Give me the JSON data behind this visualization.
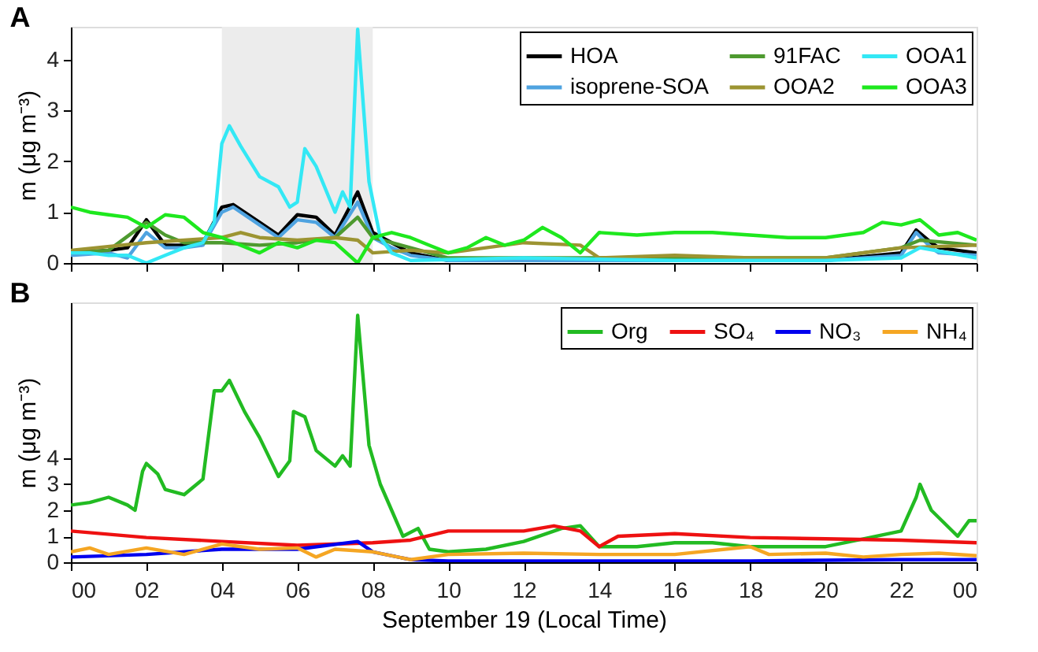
{
  "chart_data": [
    {
      "type": "line",
      "title": "A",
      "ylabel": "m (μg m⁻³)",
      "xlim": [
        0,
        24
      ],
      "ylim": [
        0,
        4.65
      ],
      "xticks": [
        {
          "value": 0,
          "label": null
        },
        {
          "value": 2,
          "label": null
        },
        {
          "value": 4,
          "label": null
        },
        {
          "value": 6,
          "label": null
        },
        {
          "value": 8,
          "label": null
        },
        {
          "value": 10,
          "label": null
        },
        {
          "value": 12,
          "label": null
        },
        {
          "value": 14,
          "label": null
        },
        {
          "value": 16,
          "label": null
        },
        {
          "value": 18,
          "label": null
        },
        {
          "value": 20,
          "label": null
        },
        {
          "value": 22,
          "label": null
        },
        {
          "value": 24,
          "label": null
        }
      ],
      "yticks": [
        0,
        1,
        2,
        3,
        4
      ],
      "tick_labels": "y",
      "grid": false,
      "legend": "top right",
      "line_style": "solid",
      "bands": [
        {
          "axis": "x",
          "from": 4,
          "to": 8,
          "color": "#ececec"
        }
      ],
      "series": [
        {
          "name": "HOA",
          "color": "#000000",
          "x": [
            0,
            1,
            1.5,
            2,
            2.5,
            3,
            3.5,
            4,
            4.3,
            5,
            5.5,
            6,
            6.5,
            7,
            7.6,
            8,
            8.5,
            9,
            10,
            12,
            14,
            16,
            18,
            20,
            22,
            22.4,
            22.8,
            23,
            24
          ],
          "values": [
            0.2,
            0.25,
            0.3,
            0.85,
            0.35,
            0.35,
            0.4,
            1.1,
            1.15,
            0.8,
            0.55,
            0.95,
            0.9,
            0.55,
            1.4,
            0.6,
            0.4,
            0.2,
            0.05,
            0.05,
            0.05,
            0.05,
            0.05,
            0.05,
            0.2,
            0.65,
            0.4,
            0.3,
            0.2
          ]
        },
        {
          "name": "isoprene-SOA",
          "color": "#4fa3e0",
          "x": [
            0,
            1,
            1.5,
            2,
            2.5,
            3,
            3.5,
            4,
            4.3,
            5,
            5.5,
            6,
            6.5,
            7,
            7.6,
            8,
            8.5,
            9,
            10,
            12,
            14,
            16,
            18,
            20,
            22,
            22.4,
            22.8,
            23,
            24
          ],
          "values": [
            0.15,
            0.2,
            0.1,
            0.6,
            0.3,
            0.3,
            0.35,
            1.0,
            1.1,
            0.75,
            0.5,
            0.85,
            0.8,
            0.5,
            1.2,
            0.5,
            0.3,
            0.15,
            0.05,
            0.05,
            0.05,
            0.05,
            0.05,
            0.05,
            0.15,
            0.6,
            0.3,
            0.2,
            0.15
          ]
        },
        {
          "name": "91FAC",
          "color": "#4e9a2f",
          "x": [
            0,
            1,
            2,
            2.5,
            3,
            4,
            5,
            6,
            7,
            7.6,
            8,
            9,
            10,
            12,
            14,
            16,
            18,
            20,
            22,
            22.5,
            24
          ],
          "values": [
            0.2,
            0.25,
            0.8,
            0.55,
            0.4,
            0.4,
            0.35,
            0.4,
            0.5,
            0.9,
            0.5,
            0.3,
            0.1,
            0.1,
            0.1,
            0.1,
            0.1,
            0.1,
            0.3,
            0.45,
            0.35
          ]
        },
        {
          "name": "OOA2",
          "color": "#9c9432",
          "x": [
            0,
            2,
            3,
            4,
            4.5,
            5,
            6,
            7,
            7.6,
            8,
            9,
            10,
            12,
            13.5,
            14,
            16,
            18,
            20,
            22,
            24
          ],
          "values": [
            0.25,
            0.4,
            0.45,
            0.5,
            0.6,
            0.5,
            0.45,
            0.5,
            0.45,
            0.2,
            0.25,
            0.2,
            0.4,
            0.35,
            0.1,
            0.15,
            0.1,
            0.1,
            0.3,
            0.35
          ]
        },
        {
          "name": "OOA1",
          "color": "#33e8f5",
          "x": [
            0,
            0.5,
            1,
            1.5,
            2,
            2.5,
            3,
            3.5,
            3.8,
            4,
            4.2,
            4.5,
            5,
            5.5,
            5.8,
            6,
            6.2,
            6.5,
            7,
            7.2,
            7.4,
            7.6,
            7.9,
            8.2,
            8.5,
            9,
            12,
            16,
            20,
            22,
            22.5,
            24
          ],
          "values": [
            0.2,
            0.2,
            0.15,
            0.15,
            0.0,
            0.15,
            0.3,
            0.4,
            0.8,
            2.35,
            2.7,
            2.3,
            1.7,
            1.5,
            1.1,
            1.2,
            2.25,
            1.9,
            1.0,
            1.4,
            1.1,
            4.6,
            1.6,
            0.5,
            0.2,
            0.05,
            0.1,
            0.05,
            0.05,
            0.1,
            0.3,
            0.1
          ]
        },
        {
          "name": "OOA3",
          "color": "#1ee81e",
          "x": [
            0,
            0.5,
            1,
            1.5,
            2,
            2.5,
            3,
            3.5,
            4,
            4.5,
            5,
            5.5,
            6,
            6.5,
            7,
            7.6,
            8,
            8.5,
            9,
            9.5,
            10,
            10.5,
            11,
            11.5,
            12,
            12.5,
            13,
            13.5,
            14,
            15,
            16,
            17,
            18,
            19,
            20,
            21,
            21.5,
            22,
            22.5,
            23,
            23.5,
            24
          ],
          "values": [
            1.1,
            1.0,
            0.95,
            0.9,
            0.7,
            0.95,
            0.9,
            0.6,
            0.5,
            0.35,
            0.2,
            0.4,
            0.3,
            0.45,
            0.4,
            0.0,
            0.5,
            0.6,
            0.5,
            0.35,
            0.2,
            0.3,
            0.5,
            0.35,
            0.45,
            0.7,
            0.5,
            0.2,
            0.6,
            0.55,
            0.6,
            0.6,
            0.55,
            0.5,
            0.5,
            0.6,
            0.8,
            0.75,
            0.85,
            0.55,
            0.6,
            0.45
          ]
        }
      ]
    },
    {
      "type": "line",
      "title": "B",
      "xlabel": "September 19 (Local Time)",
      "ylabel": "m (μg m⁻³)",
      "xlim": [
        0,
        24
      ],
      "ylim": [
        0,
        10
      ],
      "xticks": [
        {
          "value": 0,
          "label": "00"
        },
        {
          "value": 2,
          "label": "02"
        },
        {
          "value": 4,
          "label": "04"
        },
        {
          "value": 6,
          "label": "06"
        },
        {
          "value": 8,
          "label": "08"
        },
        {
          "value": 10,
          "label": "10"
        },
        {
          "value": 12,
          "label": "12"
        },
        {
          "value": 14,
          "label": "14"
        },
        {
          "value": 16,
          "label": "16"
        },
        {
          "value": 18,
          "label": "18"
        },
        {
          "value": 20,
          "label": "20"
        },
        {
          "value": 22,
          "label": "22"
        },
        {
          "value": 24,
          "label": "00"
        }
      ],
      "yticks": [
        0,
        1,
        2,
        3,
        4
      ],
      "grid": false,
      "legend": "top right",
      "line_style": "solid",
      "series": [
        {
          "name": "Org",
          "color": "#22bb22",
          "x": [
            0,
            0.5,
            1,
            1.5,
            1.7,
            1.9,
            2,
            2.3,
            2.5,
            3,
            3.5,
            3.8,
            4,
            4.2,
            4.6,
            5,
            5.5,
            5.8,
            5.9,
            6.2,
            6.5,
            7,
            7.2,
            7.4,
            7.6,
            7.9,
            8.2,
            8.5,
            8.8,
            9.2,
            9.5,
            10,
            11,
            12,
            13,
            13.5,
            14,
            15,
            16,
            17,
            18,
            19,
            20,
            21,
            22,
            22.4,
            22.5,
            22.8,
            23.5,
            23.8,
            24
          ],
          "values": [
            2.2,
            2.3,
            2.5,
            2.2,
            2.0,
            3.5,
            3.8,
            3.4,
            2.8,
            2.6,
            3.2,
            6.6,
            6.6,
            7.0,
            5.8,
            4.8,
            3.3,
            3.9,
            5.8,
            5.6,
            4.3,
            3.7,
            4.1,
            3.7,
            9.5,
            4.5,
            3.0,
            2.0,
            1.0,
            1.3,
            0.5,
            0.4,
            0.5,
            0.8,
            1.3,
            1.4,
            0.6,
            0.6,
            0.75,
            0.75,
            0.6,
            0.6,
            0.6,
            0.9,
            1.2,
            2.5,
            3.0,
            2.0,
            1.0,
            1.6,
            1.6
          ]
        },
        {
          "name": "SO₄",
          "color": "#ee1111",
          "x": [
            0,
            2,
            4,
            6,
            8,
            9,
            10,
            12,
            12.8,
            13.5,
            14,
            14.5,
            16,
            18,
            20,
            22,
            24
          ],
          "values": [
            1.2,
            0.95,
            0.8,
            0.65,
            0.75,
            0.85,
            1.2,
            1.2,
            1.4,
            1.2,
            0.6,
            1.0,
            1.1,
            0.95,
            0.9,
            0.85,
            0.75
          ]
        },
        {
          "name": "NO₃",
          "color": "#0000ee",
          "x": [
            0,
            2,
            4,
            6,
            7.6,
            8,
            9,
            10,
            14,
            18,
            22,
            24
          ],
          "values": [
            0.2,
            0.3,
            0.5,
            0.5,
            0.8,
            0.4,
            0.1,
            0.05,
            0.05,
            0.05,
            0.1,
            0.1
          ]
        },
        {
          "name": "NH₄",
          "color": "#f5a623",
          "x": [
            0,
            0.5,
            1,
            2,
            3,
            4,
            5,
            6,
            6.5,
            7,
            8,
            9,
            10,
            12,
            14,
            16,
            18,
            18.5,
            20,
            21,
            22,
            23,
            24
          ],
          "values": [
            0.4,
            0.55,
            0.3,
            0.55,
            0.3,
            0.7,
            0.5,
            0.55,
            0.2,
            0.5,
            0.4,
            0.1,
            0.3,
            0.35,
            0.3,
            0.3,
            0.6,
            0.3,
            0.35,
            0.2,
            0.3,
            0.35,
            0.25
          ]
        }
      ]
    }
  ]
}
